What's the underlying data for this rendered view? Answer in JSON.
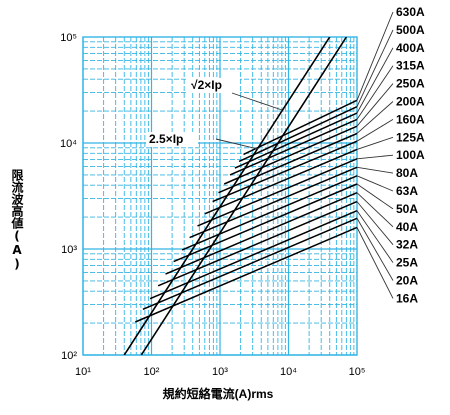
{
  "chart_data": {
    "type": "line",
    "title": "",
    "xlabel": "規約短絡電流(A)rms",
    "ylabel": "限流波高値(A)",
    "xscale": "log",
    "yscale": "log",
    "xlim": [
      10,
      100000
    ],
    "ylim": [
      100,
      100000
    ],
    "x_ticks": [
      {
        "value": 10,
        "label": "10¹"
      },
      {
        "value": 100,
        "label": "10²"
      },
      {
        "value": 1000,
        "label": "10³"
      },
      {
        "value": 10000,
        "label": "10⁴"
      },
      {
        "value": 100000,
        "label": "10⁵"
      }
    ],
    "y_ticks": [
      {
        "value": 100,
        "label": "10²"
      },
      {
        "value": 1000,
        "label": "10³"
      },
      {
        "value": 10000,
        "label": "10⁴"
      },
      {
        "value": 100000,
        "label": "10⁵"
      }
    ],
    "grid": true,
    "grid_color": "#33b5e5",
    "line_color": "#000000",
    "reference_lines": [
      {
        "name": "√2×Ip",
        "x": [
          71,
          70000
        ],
        "y": [
          100,
          100000
        ]
      },
      {
        "name": "2.5×Ip",
        "x": [
          40,
          40000
        ],
        "y": [
          100,
          100000
        ]
      }
    ],
    "series": [
      {
        "name": "630A",
        "x": [
          2200,
          100000
        ],
        "y": [
          7800,
          25300
        ]
      },
      {
        "name": "500A",
        "x": [
          1900,
          100000
        ],
        "y": [
          6700,
          22000
        ]
      },
      {
        "name": "400A",
        "x": [
          1650,
          100000
        ],
        "y": [
          5800,
          19200
        ]
      },
      {
        "name": "315A",
        "x": [
          1400,
          100000
        ],
        "y": [
          5000,
          16700
        ]
      },
      {
        "name": "250A",
        "x": [
          1150,
          100000
        ],
        "y": [
          4100,
          14400
        ]
      },
      {
        "name": "200A",
        "x": [
          950,
          100000
        ],
        "y": [
          3400,
          12300
        ]
      },
      {
        "name": "160A",
        "x": [
          780,
          100000
        ],
        "y": [
          2800,
          10400
        ]
      },
      {
        "name": "125A",
        "x": [
          600,
          100000
        ],
        "y": [
          2150,
          8700
        ]
      },
      {
        "name": "100A",
        "x": [
          470,
          100000
        ],
        "y": [
          1650,
          7100
        ]
      },
      {
        "name": "80A",
        "x": [
          360,
          100000
        ],
        "y": [
          1280,
          5900
        ]
      },
      {
        "name": "63A",
        "x": [
          280,
          100000
        ],
        "y": [
          980,
          4900
        ]
      },
      {
        "name": "50A",
        "x": [
          210,
          100000
        ],
        "y": [
          760,
          4100
        ]
      },
      {
        "name": "40A",
        "x": [
          160,
          100000
        ],
        "y": [
          580,
          3400
        ]
      },
      {
        "name": "32A",
        "x": [
          125,
          100000
        ],
        "y": [
          450,
          2800
        ]
      },
      {
        "name": "25A",
        "x": [
          95,
          100000
        ],
        "y": [
          340,
          2300
        ]
      },
      {
        "name": "20A",
        "x": [
          75,
          100000
        ],
        "y": [
          270,
          1950
        ]
      },
      {
        "name": "16A",
        "x": [
          58,
          100000
        ],
        "y": [
          205,
          1600
        ]
      }
    ]
  }
}
